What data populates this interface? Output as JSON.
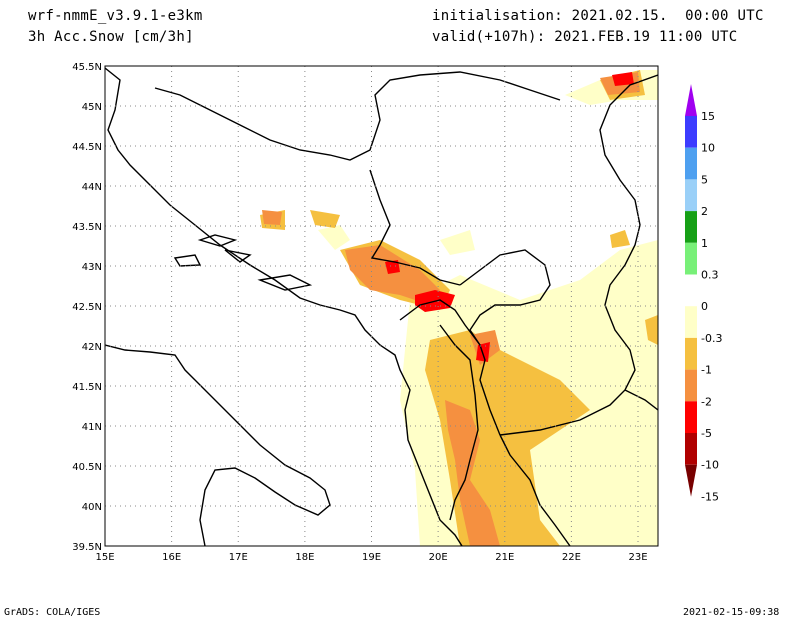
{
  "header": {
    "model": "wrf-nmmE_v3.9.1-e3km",
    "field": "3h Acc.Snow [cm/3h]",
    "init": "initialisation: 2021.02.15.  00:00 UTC",
    "valid": "valid(+107h): 2021.FEB.19 11:00 UTC"
  },
  "footer": {
    "left": "GrADS: COLA/IGES",
    "right": "2021-02-15-09:38"
  },
  "map": {
    "lon_labels": [
      "15E",
      "16E",
      "17E",
      "18E",
      "19E",
      "20E",
      "21E",
      "22E",
      "23E"
    ],
    "lat_labels": [
      "45.5N",
      "45N",
      "44.5N",
      "44N",
      "43.5N",
      "43N",
      "42.5N",
      "42N",
      "41.5N",
      "41N",
      "40.5N",
      "40N",
      "39.5N"
    ],
    "lon_range": [
      15,
      23.3
    ],
    "lat_range": [
      39.5,
      45.5
    ],
    "grid": true
  },
  "colorbar": {
    "labels": [
      "15",
      "10",
      "5",
      "2",
      "1",
      "0.3",
      "0",
      "-0.3",
      "-1",
      "-2",
      "-5",
      "-10",
      "-15"
    ],
    "colors": [
      "#a000f0",
      "#3c3cff",
      "#4ea0f0",
      "#9ad0f8",
      "#16a016",
      "#78f078",
      "#ffffff",
      "#ffffc8",
      "#f5c040",
      "#f59040",
      "#ff0000",
      "#b00000",
      "#780000"
    ]
  }
}
